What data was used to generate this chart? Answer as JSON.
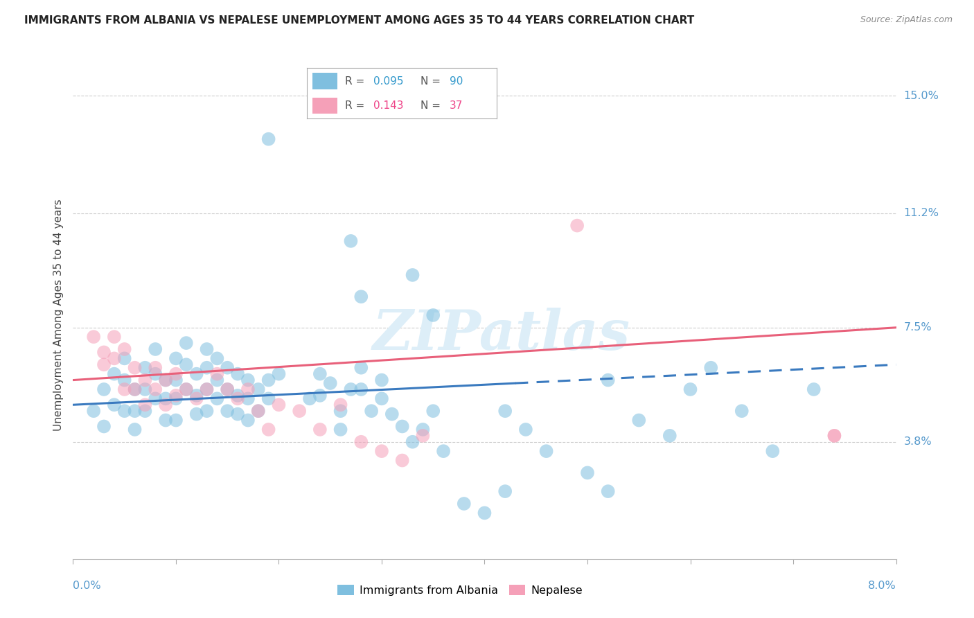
{
  "title": "IMMIGRANTS FROM ALBANIA VS NEPALESE UNEMPLOYMENT AMONG AGES 35 TO 44 YEARS CORRELATION CHART",
  "source": "Source: ZipAtlas.com",
  "ylabel": "Unemployment Among Ages 35 to 44 years",
  "ytick_vals": [
    0.038,
    0.075,
    0.112,
    0.15
  ],
  "ytick_labels": [
    "3.8%",
    "7.5%",
    "11.2%",
    "15.0%"
  ],
  "xmin": 0.0,
  "xmax": 0.08,
  "ymin": 0.0,
  "ymax": 0.158,
  "legend_r1": "0.095",
  "legend_n1": "90",
  "legend_r2": "0.143",
  "legend_n2": "37",
  "color_blue": "#7fbfdf",
  "color_pink": "#f5a0b8",
  "color_blue_line": "#3a7abf",
  "color_pink_line": "#e8607a",
  "color_rn_blue": "#3399cc",
  "color_rn_pink": "#ee4488",
  "grid_color": "#cccccc",
  "axis_label_color": "#5599cc",
  "watermark_color": "#ddeef8"
}
